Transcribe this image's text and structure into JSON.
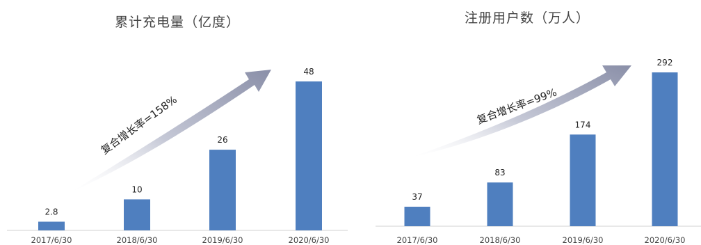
{
  "colors": {
    "bar": "#4f7fbf",
    "arrow": "#9fa3b8",
    "axis": "#d0d0d0"
  },
  "chart_data": [
    {
      "type": "bar",
      "title": "累计充电量（亿度）",
      "categories": [
        "2017/6/30",
        "2018/6/30",
        "2019/6/30",
        "2020/6/30"
      ],
      "values": [
        2.8,
        10,
        26,
        48
      ],
      "value_labels": [
        "2.8",
        "10",
        "26",
        "48"
      ],
      "annotation": "复合增长率=158%",
      "grid": false,
      "legend": "none"
    },
    {
      "type": "bar",
      "title": "注册用户数（万人）",
      "categories": [
        "2017/6/30",
        "2018/6/30",
        "2019/6/30",
        "2020/6/30"
      ],
      "values": [
        37,
        83,
        174,
        292
      ],
      "value_labels": [
        "37",
        "83",
        "174",
        "292"
      ],
      "annotation": "复合增长率=99%",
      "grid": false,
      "legend": "none"
    }
  ]
}
